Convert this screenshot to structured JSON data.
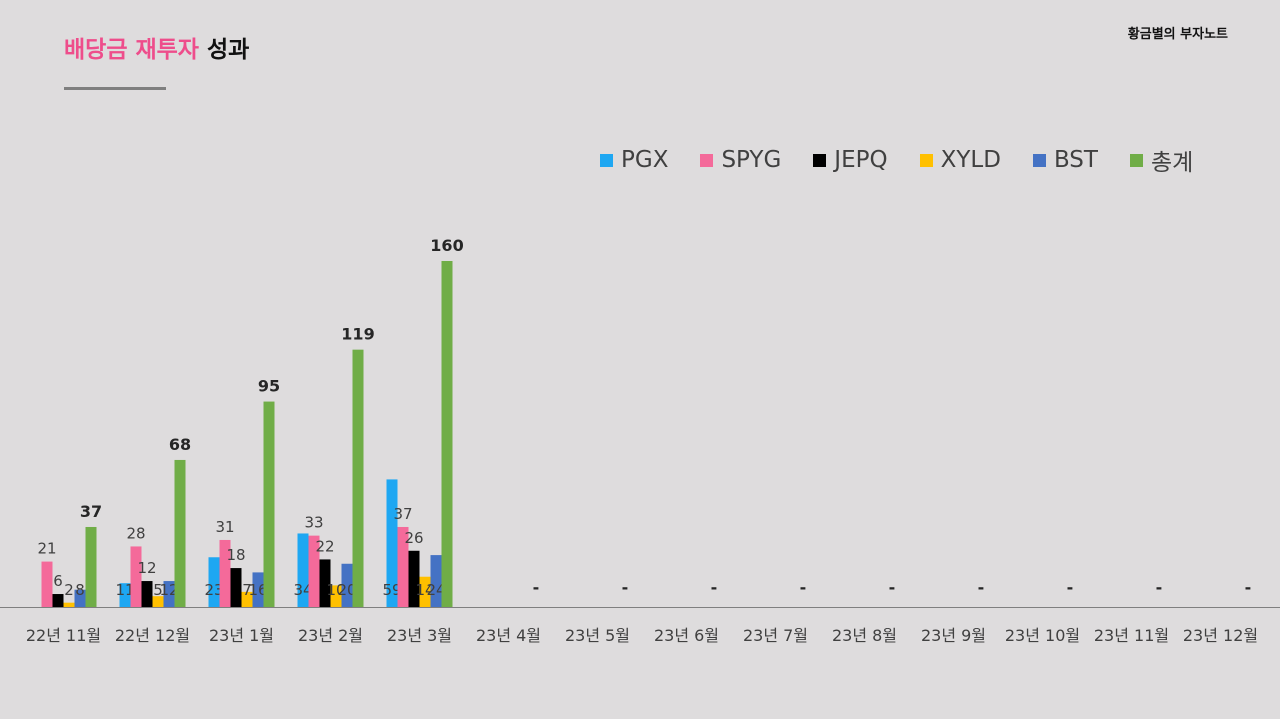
{
  "header": {
    "title_pink": "배당금 재투자",
    "title_black": "성과",
    "brand": "황금별의 부자노트"
  },
  "colors": {
    "PGX": "#1ea7f2",
    "SPYG": "#f46a9a",
    "JEPQ": "#000000",
    "XYLD": "#ffc000",
    "BST": "#4472c4",
    "total": "#70ad47"
  },
  "chart_data": {
    "type": "bar",
    "title": "배당금 재투자 성과",
    "legend_position": "top-right",
    "categories": [
      "22년 11월",
      "22년 12월",
      "23년 1월",
      "23년 2월",
      "23년 3월",
      "23년 4월",
      "23년 5월",
      "23년 6월",
      "23년 7월",
      "23년 8월",
      "23년 9월",
      "23년 10월",
      "23년 11월",
      "23년 12월"
    ],
    "series": [
      {
        "name": "PGX",
        "values": [
          0,
          11,
          23,
          34,
          59,
          null,
          null,
          null,
          null,
          null,
          null,
          null,
          null,
          null
        ],
        "labels": [
          "",
          "11",
          "23",
          "34",
          "59",
          "",
          "",
          "",
          "",
          "",
          "",
          "",
          "",
          ""
        ]
      },
      {
        "name": "SPYG",
        "values": [
          21,
          28,
          31,
          33,
          37,
          null,
          null,
          null,
          null,
          null,
          null,
          null,
          null,
          null
        ],
        "labels": [
          "21",
          "28",
          "31",
          "33",
          "37",
          "",
          "",
          "",
          "",
          "",
          "",
          "",
          "",
          ""
        ]
      },
      {
        "name": "JEPQ",
        "values": [
          6,
          12,
          18,
          22,
          26,
          null,
          null,
          null,
          null,
          null,
          null,
          null,
          null,
          null
        ],
        "labels": [
          "6",
          "12",
          "18",
          "22",
          "26",
          "",
          "",
          "",
          "",
          "",
          "",
          "",
          "",
          ""
        ]
      },
      {
        "name": "XYLD",
        "values": [
          2,
          5,
          7,
          10,
          14,
          null,
          null,
          null,
          null,
          null,
          null,
          null,
          null,
          null
        ],
        "labels": [
          "2",
          "5",
          "7",
          "10",
          "14",
          "",
          "",
          "",
          "",
          "",
          "",
          "",
          "",
          ""
        ]
      },
      {
        "name": "BST",
        "values": [
          8,
          12,
          16,
          20,
          24,
          null,
          null,
          null,
          null,
          null,
          null,
          null,
          null,
          null
        ],
        "labels": [
          "8",
          "12",
          "16",
          "20",
          "24",
          "",
          "",
          "",
          "",
          "",
          "",
          "",
          "",
          ""
        ]
      },
      {
        "name": "총계",
        "values": [
          37,
          68,
          95,
          119,
          160,
          null,
          null,
          null,
          null,
          null,
          null,
          null,
          null,
          null
        ],
        "labels": [
          "37",
          "68",
          "95",
          "119",
          "160",
          "-",
          "-",
          "-",
          "-",
          "-",
          "-",
          "-",
          "-",
          "-"
        ]
      }
    ],
    "ylim": [
      0,
      180
    ],
    "grid": false,
    "xlabel": "",
    "ylabel": ""
  }
}
